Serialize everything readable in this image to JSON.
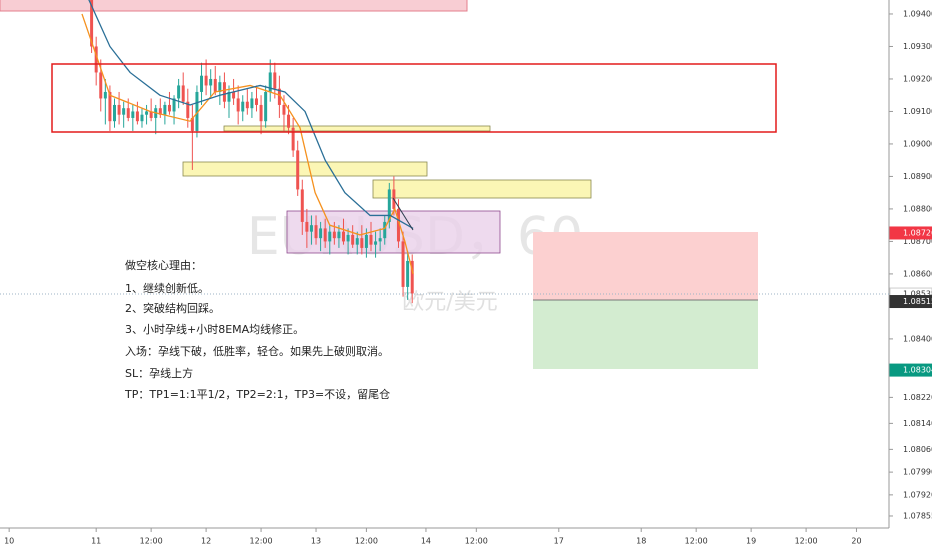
{
  "chart_data": {
    "type": "candlestick",
    "xlim": [
      0,
      194.1
    ],
    "ylim": [
      1.07818,
      1.09443
    ],
    "xticks": [
      {
        "value": 2,
        "label": "10"
      },
      {
        "value": 21,
        "label": "11"
      },
      {
        "value": 33,
        "label": "12:00"
      },
      {
        "value": 45,
        "label": "12"
      },
      {
        "value": 57,
        "label": "12:00"
      },
      {
        "value": 69,
        "label": "13"
      },
      {
        "value": 80,
        "label": "12:00"
      },
      {
        "value": 93,
        "label": "14"
      },
      {
        "value": 104,
        "label": "12:00"
      },
      {
        "value": 122,
        "label": "17"
      },
      {
        "value": 140,
        "label": "18"
      },
      {
        "value": 152,
        "label": "12:00"
      },
      {
        "value": 164,
        "label": "19"
      },
      {
        "value": 176,
        "label": "12:00"
      },
      {
        "value": 187,
        "label": "20"
      }
    ],
    "yticks": [
      {
        "value": 1.094,
        "label": "1.09400"
      },
      {
        "value": 1.093,
        "label": "1.09300"
      },
      {
        "value": 1.092,
        "label": "1.09200"
      },
      {
        "value": 1.091,
        "label": "1.09100"
      },
      {
        "value": 1.09,
        "label": "1.09000"
      },
      {
        "value": 1.089,
        "label": "1.08900"
      },
      {
        "value": 1.088,
        "label": "1.08800"
      },
      {
        "value": 1.087,
        "label": "1.08700"
      },
      {
        "value": 1.086,
        "label": "1.08600"
      },
      {
        "value": 1.084,
        "label": "1.08400"
      },
      {
        "value": 1.0822,
        "label": "1.08220"
      },
      {
        "value": 1.0814,
        "label": "1.08140"
      },
      {
        "value": 1.0806,
        "label": "1.08060"
      },
      {
        "value": 1.0799,
        "label": "1.07990"
      },
      {
        "value": 1.0792,
        "label": "1.07920"
      },
      {
        "value": 1.07855,
        "label": "1.07855"
      }
    ],
    "up_color": "#26a69a",
    "down_color": "#ef5350",
    "x": [
      20,
      21,
      22,
      23,
      24,
      25,
      26,
      27,
      28,
      29,
      30,
      31,
      32,
      33,
      34,
      35,
      36,
      37,
      38,
      39,
      40,
      41,
      42,
      43,
      44,
      45,
      46,
      47,
      48,
      49,
      50,
      51,
      52,
      53,
      54,
      55,
      56,
      57,
      58,
      59,
      60,
      61,
      62,
      63,
      64,
      65,
      66,
      67,
      68,
      69,
      70,
      71,
      72,
      73,
      74,
      75,
      76,
      77,
      78,
      79,
      80,
      81,
      82,
      83,
      84,
      85,
      86,
      87,
      88,
      89,
      90
    ],
    "ohlc": [
      [
        1.0948,
        1.095,
        1.0928,
        1.093
      ],
      [
        1.093,
        1.0933,
        1.0918,
        1.0922
      ],
      [
        1.0922,
        1.0926,
        1.091,
        1.0914
      ],
      [
        1.0914,
        1.092,
        1.0906,
        1.0916
      ],
      [
        1.0916,
        1.0918,
        1.0904,
        1.0907
      ],
      [
        1.0907,
        1.0914,
        1.0905,
        1.0912
      ],
      [
        1.0912,
        1.0916,
        1.0906,
        1.0909
      ],
      [
        1.0909,
        1.0913,
        1.0905,
        1.0911
      ],
      [
        1.0911,
        1.0914,
        1.0907,
        1.0908
      ],
      [
        1.0908,
        1.0912,
        1.0904,
        1.091
      ],
      [
        1.091,
        1.0913,
        1.0906,
        1.0907
      ],
      [
        1.0907,
        1.0911,
        1.0905,
        1.0909
      ],
      [
        1.0909,
        1.0912,
        1.0906,
        1.091
      ],
      [
        1.091,
        1.0914,
        1.0907,
        1.0908
      ],
      [
        1.0908,
        1.0912,
        1.0903,
        1.0911
      ],
      [
        1.0911,
        1.0914,
        1.0908,
        1.0909
      ],
      [
        1.0909,
        1.0913,
        1.0906,
        1.0912
      ],
      [
        1.0912,
        1.0916,
        1.0909,
        1.091
      ],
      [
        1.091,
        1.0915,
        1.0906,
        1.0914
      ],
      [
        1.0914,
        1.092,
        1.0911,
        1.0918
      ],
      [
        1.0918,
        1.0922,
        1.0912,
        1.0913
      ],
      [
        1.0913,
        1.0917,
        1.0905,
        1.0908
      ],
      [
        1.0908,
        1.0912,
        1.0892,
        1.0904
      ],
      [
        1.0904,
        1.0918,
        1.0902,
        1.0916
      ],
      [
        1.0916,
        1.0925,
        1.0912,
        1.0921
      ],
      [
        1.0921,
        1.0926,
        1.0915,
        1.0918
      ],
      [
        1.0918,
        1.0923,
        1.0914,
        1.092
      ],
      [
        1.092,
        1.0924,
        1.0915,
        1.0916
      ],
      [
        1.0916,
        1.0921,
        1.0912,
        1.0919
      ],
      [
        1.0919,
        1.0922,
        1.0911,
        1.0913
      ],
      [
        1.0913,
        1.0918,
        1.0908,
        1.0916
      ],
      [
        1.0916,
        1.092,
        1.0912,
        1.0914
      ],
      [
        1.0914,
        1.0918,
        1.0906,
        1.091
      ],
      [
        1.091,
        1.0915,
        1.0907,
        1.0913
      ],
      [
        1.0913,
        1.0917,
        1.0909,
        1.0911
      ],
      [
        1.0911,
        1.0916,
        1.0908,
        1.0914
      ],
      [
        1.0914,
        1.0918,
        1.091,
        1.0912
      ],
      [
        1.0912,
        1.0915,
        1.0903,
        1.0907
      ],
      [
        1.0907,
        1.0918,
        1.0905,
        1.0916
      ],
      [
        1.0916,
        1.0926,
        1.0913,
        1.0922
      ],
      [
        1.0922,
        1.0925,
        1.0914,
        1.0917
      ],
      [
        1.0917,
        1.0921,
        1.0908,
        1.0912
      ],
      [
        1.0912,
        1.0915,
        1.0904,
        1.0909
      ],
      [
        1.0909,
        1.0912,
        1.0903,
        1.0905
      ],
      [
        1.0905,
        1.0908,
        1.0896,
        1.0898
      ],
      [
        1.0898,
        1.0901,
        1.0884,
        1.0886
      ],
      [
        1.0886,
        1.0889,
        1.0872,
        1.0876
      ],
      [
        1.0876,
        1.088,
        1.0868,
        1.0873
      ],
      [
        1.0873,
        1.0878,
        1.0869,
        1.0875
      ],
      [
        1.0875,
        1.0878,
        1.0869,
        1.0871
      ],
      [
        1.0871,
        1.0876,
        1.0867,
        1.0874
      ],
      [
        1.0874,
        1.0877,
        1.0868,
        1.087
      ],
      [
        1.087,
        1.0875,
        1.0866,
        1.0873
      ],
      [
        1.0873,
        1.0876,
        1.0869,
        1.0871
      ],
      [
        1.0871,
        1.0875,
        1.0868,
        1.0873
      ],
      [
        1.0873,
        1.0877,
        1.0869,
        1.087
      ],
      [
        1.087,
        1.0874,
        1.0866,
        1.0872
      ],
      [
        1.0872,
        1.0875,
        1.0868,
        1.0869
      ],
      [
        1.0869,
        1.0873,
        1.0866,
        1.0871
      ],
      [
        1.0871,
        1.0875,
        1.0866,
        1.0868
      ],
      [
        1.0868,
        1.0874,
        1.0865,
        1.0872
      ],
      [
        1.0872,
        1.0876,
        1.0867,
        1.0869
      ],
      [
        1.0869,
        1.0873,
        1.0865,
        1.087
      ],
      [
        1.087,
        1.0874,
        1.0867,
        1.0871
      ],
      [
        1.0871,
        1.0878,
        1.0869,
        1.0876
      ],
      [
        1.0876,
        1.0888,
        1.0874,
        1.0886
      ],
      [
        1.0886,
        1.089,
        1.0878,
        1.088
      ],
      [
        1.088,
        1.0883,
        1.0868,
        1.087
      ],
      [
        1.087,
        1.0873,
        1.0853,
        1.0856
      ],
      [
        1.0856,
        1.0867,
        1.0852,
        1.0864
      ],
      [
        1.0864,
        1.0866,
        1.0851,
        1.0854
      ]
    ],
    "lines": [
      {
        "color": "#f5911e",
        "x": [
          17.9,
          24,
          32.8,
          41.5,
          46.9,
          54.6,
          61.1,
          65.5,
          68.8,
          72,
          78.6,
          84,
          86.2,
          88.4,
          90.2
        ],
        "values": [
          1.094,
          1.0915,
          1.091,
          1.0907,
          1.0916,
          1.0918,
          1.0915,
          1.0905,
          1.0885,
          1.0875,
          1.0872,
          1.0874,
          1.088,
          1.087,
          1.086
        ]
      },
      {
        "color": "#2a6f97",
        "x": [
          19.2,
          24,
          28.4,
          34.9,
          41.5,
          48,
          56.8,
          62.2,
          66.6,
          71,
          75.3,
          80.8,
          85.2,
          90.2
        ],
        "values": [
          1.0945,
          1.093,
          1.0922,
          1.0915,
          1.0912,
          1.0915,
          1.0918,
          1.0916,
          1.091,
          1.0895,
          1.0885,
          1.0878,
          1.0878,
          1.0874
        ]
      }
    ],
    "price_labels": [
      {
        "value": 1.08726,
        "color": "#f23645"
      },
      {
        "value": 1.08538,
        "color": "#ffffff",
        "dotted_line": true
      },
      {
        "value": 1.08515,
        "color": "#333333"
      },
      {
        "value": 1.08304,
        "color": "#089981"
      }
    ],
    "watermark": {
      "symbol": "EURUSD，60",
      "name": "欧元/美元"
    },
    "annotations": [
      "做空核心理由：",
      "1、继续创新低。",
      "2、突破结构回踩。",
      "3、小时孕线+小时8EMA均线修正。",
      "入场：孕线下破，低胜率，轻仓。如果先上破则取消。",
      "SL：孕线上方",
      "TP：TP1=1:1平1/2，TP2=2:1，TP3=不设，留尾仓"
    ]
  }
}
